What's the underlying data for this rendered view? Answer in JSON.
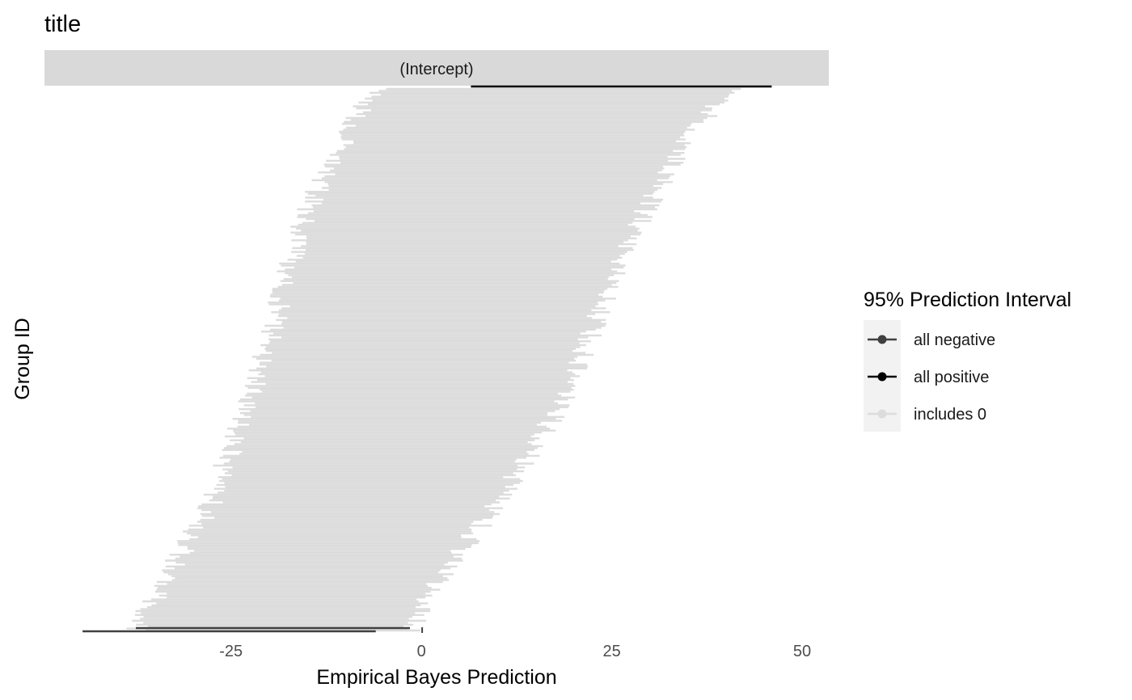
{
  "chart_data": {
    "type": "interval",
    "title": "title",
    "facet_label": "(Intercept)",
    "xlabel": "Empirical Bayes Prediction",
    "ylabel": "Group ID",
    "xlim": [
      -49.5,
      53.5
    ],
    "x_ticks": [
      -25,
      0,
      25,
      50
    ],
    "x_tick_labels": [
      "-25",
      "0",
      "25",
      "50"
    ],
    "grid": false,
    "legend": {
      "title": "95% Prediction Interval",
      "placement": "right",
      "entries": [
        {
          "label": "all negative",
          "color": "#404040"
        },
        {
          "label": "all positive",
          "color": "#000000"
        },
        {
          "label": "includes 0",
          "color": "#dcdcdc"
        }
      ]
    },
    "group_count": 280,
    "interval_samples": {
      "note_rows": "sampled from bottom (lowest estimate) to top (highest estimate)",
      "lower_bottom_to_top": [
        -37.5,
        -33.0,
        -28.0,
        -25.0,
        -22.0,
        -19.5,
        -17.5,
        -15.0,
        -11.0,
        -6.0
      ],
      "upper_bottom_to_top": [
        -1.5,
        3.0,
        9.5,
        14.5,
        19.5,
        22.5,
        26.0,
        29.5,
        34.0,
        40.5
      ]
    },
    "highlighted_intervals": [
      {
        "category": "all positive",
        "lower": 6.5,
        "upper": 46.0,
        "position": "top"
      },
      {
        "category": "all negative",
        "lower": -37.5,
        "upper": -1.5,
        "position": "bottom"
      },
      {
        "category": "all negative",
        "lower": -44.5,
        "upper": -6.0,
        "position": "bottom"
      }
    ],
    "colors": {
      "includes_zero": "#dcdcdc",
      "all_negative": "#404040",
      "all_positive": "#000000",
      "strip_bg": "#d9d9d9",
      "text": "#4d4d4d"
    }
  }
}
